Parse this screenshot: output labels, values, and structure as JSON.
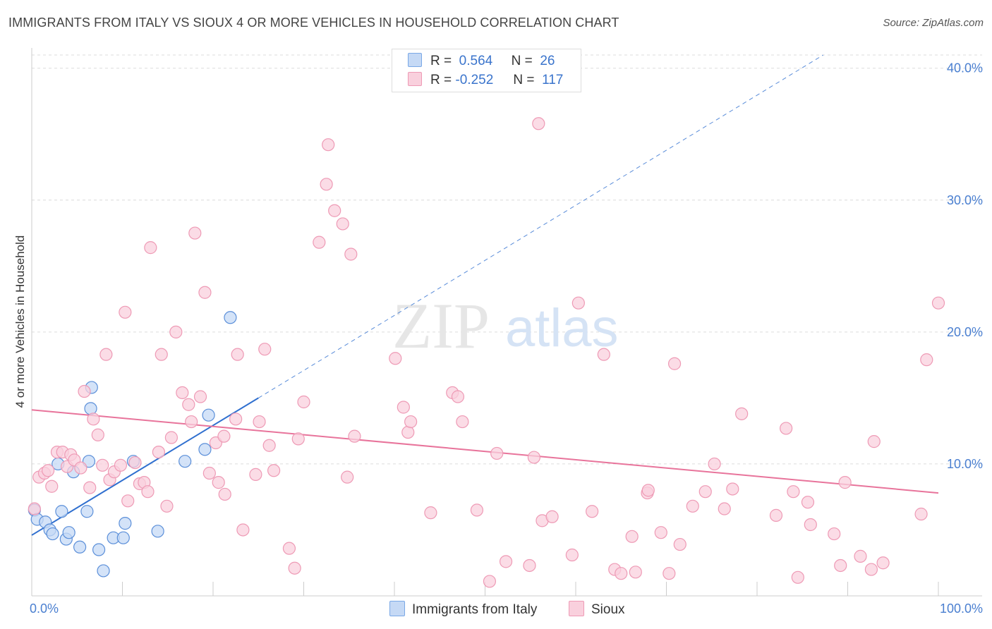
{
  "title": "IMMIGRANTS FROM ITALY VS SIOUX 4 OR MORE VEHICLES IN HOUSEHOLD CORRELATION CHART",
  "source": "Source: ZipAtlas.com",
  "watermark": {
    "zip": "ZIP",
    "atlas": "atlas"
  },
  "legend": {
    "r_label": "R =",
    "n_label": "N =",
    "rows": [
      {
        "r": "0.564",
        "n": "26",
        "color": "#7aa8e6",
        "fill": "#c5d9f5"
      },
      {
        "r": "-0.252",
        "n": "117",
        "color": "#ee9ab5",
        "fill": "#f9d0dd"
      }
    ]
  },
  "bottom_legend": [
    {
      "label": "Immigrants from Italy",
      "color": "#7aa8e6",
      "fill": "#c5d9f5"
    },
    {
      "label": "Sioux",
      "color": "#ee9ab5",
      "fill": "#f9d0dd"
    }
  ],
  "chart_data": {
    "type": "scatter",
    "xlabel": "",
    "ylabel": "4 or more Vehicles in Household",
    "xlim": [
      0,
      100
    ],
    "ylim": [
      0,
      41
    ],
    "x_tick_labels": [
      {
        "value": 0,
        "label": "0.0%"
      },
      {
        "value": 100,
        "label": "100.0%"
      }
    ],
    "y_ticks": [
      {
        "value": 10,
        "label": "10.0%"
      },
      {
        "value": 20,
        "label": "20.0%"
      },
      {
        "value": 30,
        "label": "30.0%"
      },
      {
        "value": 40,
        "label": "40.0%"
      }
    ],
    "grid": "horizontal dashed",
    "series": [
      {
        "name": "Immigrants from Italy",
        "color": "#5b8fd9",
        "fill": "#c5d9f5",
        "trend": {
          "x0": 0,
          "y0": 4.6,
          "x1": 25,
          "y1": 15.0,
          "dashed_to_x": 100,
          "dashed_to_y": 46.3,
          "color": "#2f6fcf"
        },
        "points": [
          [
            0.3,
            6.5
          ],
          [
            0.6,
            5.8
          ],
          [
            1.5,
            5.6
          ],
          [
            2.0,
            5.0
          ],
          [
            2.3,
            4.7
          ],
          [
            2.9,
            10.0
          ],
          [
            3.3,
            6.4
          ],
          [
            3.8,
            4.3
          ],
          [
            4.1,
            4.8
          ],
          [
            4.6,
            9.4
          ],
          [
            5.3,
            3.7
          ],
          [
            6.1,
            6.4
          ],
          [
            6.3,
            10.2
          ],
          [
            6.5,
            14.2
          ],
          [
            6.6,
            15.8
          ],
          [
            7.4,
            3.5
          ],
          [
            7.9,
            1.9
          ],
          [
            9.0,
            4.4
          ],
          [
            10.1,
            4.4
          ],
          [
            10.3,
            5.5
          ],
          [
            11.2,
            10.2
          ],
          [
            13.9,
            4.9
          ],
          [
            16.9,
            10.2
          ],
          [
            19.1,
            11.1
          ],
          [
            19.5,
            13.7
          ],
          [
            21.9,
            21.1
          ]
        ]
      },
      {
        "name": "Sioux",
        "color": "#ee9ab5",
        "fill": "#f9d0dd",
        "trend": {
          "x0": 0,
          "y0": 14.1,
          "x1": 100,
          "y1": 7.8,
          "color": "#e8749b"
        },
        "points": [
          [
            0.3,
            6.6
          ],
          [
            0.8,
            9.0
          ],
          [
            1.4,
            9.3
          ],
          [
            1.8,
            9.5
          ],
          [
            2.2,
            8.3
          ],
          [
            2.8,
            10.9
          ],
          [
            3.4,
            10.9
          ],
          [
            3.9,
            9.8
          ],
          [
            4.3,
            10.7
          ],
          [
            4.7,
            10.3
          ],
          [
            5.4,
            9.7
          ],
          [
            5.8,
            15.5
          ],
          [
            6.4,
            8.2
          ],
          [
            6.8,
            13.4
          ],
          [
            7.3,
            12.2
          ],
          [
            7.8,
            9.9
          ],
          [
            8.2,
            18.3
          ],
          [
            8.6,
            8.8
          ],
          [
            9.1,
            9.4
          ],
          [
            9.8,
            9.9
          ],
          [
            10.3,
            21.5
          ],
          [
            10.6,
            7.2
          ],
          [
            11.4,
            10.1
          ],
          [
            11.9,
            8.5
          ],
          [
            12.4,
            8.6
          ],
          [
            12.8,
            7.9
          ],
          [
            13.1,
            26.4
          ],
          [
            14.0,
            10.9
          ],
          [
            14.3,
            18.3
          ],
          [
            14.9,
            6.8
          ],
          [
            15.4,
            12.0
          ],
          [
            15.9,
            20.0
          ],
          [
            16.6,
            15.4
          ],
          [
            17.3,
            14.5
          ],
          [
            17.6,
            13.2
          ],
          [
            18.0,
            27.5
          ],
          [
            18.6,
            15.1
          ],
          [
            19.1,
            23.0
          ],
          [
            19.6,
            9.3
          ],
          [
            20.3,
            11.6
          ],
          [
            20.6,
            8.6
          ],
          [
            21.2,
            12.1
          ],
          [
            21.3,
            7.7
          ],
          [
            22.5,
            13.4
          ],
          [
            22.7,
            18.3
          ],
          [
            23.3,
            5.0
          ],
          [
            24.7,
            9.2
          ],
          [
            25.1,
            13.2
          ],
          [
            25.7,
            18.7
          ],
          [
            26.2,
            11.4
          ],
          [
            26.7,
            9.5
          ],
          [
            28.4,
            3.6
          ],
          [
            29.0,
            2.1
          ],
          [
            29.4,
            11.9
          ],
          [
            30.0,
            14.7
          ],
          [
            31.7,
            26.8
          ],
          [
            32.5,
            31.2
          ],
          [
            32.7,
            34.2
          ],
          [
            33.4,
            29.2
          ],
          [
            34.3,
            28.2
          ],
          [
            34.8,
            9.0
          ],
          [
            35.2,
            25.9
          ],
          [
            35.6,
            12.1
          ],
          [
            40.1,
            18.0
          ],
          [
            41.0,
            14.3
          ],
          [
            41.5,
            12.4
          ],
          [
            41.8,
            13.2
          ],
          [
            44.0,
            6.3
          ],
          [
            46.4,
            15.4
          ],
          [
            47.0,
            15.1
          ],
          [
            47.5,
            13.2
          ],
          [
            49.1,
            6.5
          ],
          [
            50.5,
            1.1
          ],
          [
            51.3,
            10.8
          ],
          [
            52.3,
            2.6
          ],
          [
            54.9,
            2.3
          ],
          [
            55.4,
            10.5
          ],
          [
            55.9,
            35.8
          ],
          [
            56.3,
            5.7
          ],
          [
            57.4,
            6.0
          ],
          [
            59.6,
            3.1
          ],
          [
            60.3,
            22.2
          ],
          [
            61.8,
            6.4
          ],
          [
            63.1,
            18.3
          ],
          [
            64.3,
            2.0
          ],
          [
            65.0,
            1.7
          ],
          [
            66.2,
            4.5
          ],
          [
            66.6,
            1.8
          ],
          [
            67.9,
            7.8
          ],
          [
            68.0,
            8.0
          ],
          [
            69.4,
            4.8
          ],
          [
            70.3,
            1.7
          ],
          [
            70.9,
            17.6
          ],
          [
            71.5,
            3.9
          ],
          [
            72.9,
            6.8
          ],
          [
            74.3,
            7.9
          ],
          [
            75.3,
            10.0
          ],
          [
            76.4,
            6.6
          ],
          [
            77.3,
            8.1
          ],
          [
            78.3,
            13.8
          ],
          [
            82.1,
            6.1
          ],
          [
            83.2,
            12.7
          ],
          [
            84.0,
            7.9
          ],
          [
            84.5,
            1.4
          ],
          [
            85.6,
            7.1
          ],
          [
            85.9,
            5.4
          ],
          [
            88.5,
            4.7
          ],
          [
            89.2,
            2.3
          ],
          [
            89.7,
            8.6
          ],
          [
            91.4,
            3.0
          ],
          [
            92.6,
            2.0
          ],
          [
            92.9,
            11.7
          ],
          [
            93.9,
            2.5
          ],
          [
            98.1,
            6.2
          ],
          [
            98.7,
            17.9
          ],
          [
            100.0,
            22.2
          ]
        ]
      }
    ]
  }
}
